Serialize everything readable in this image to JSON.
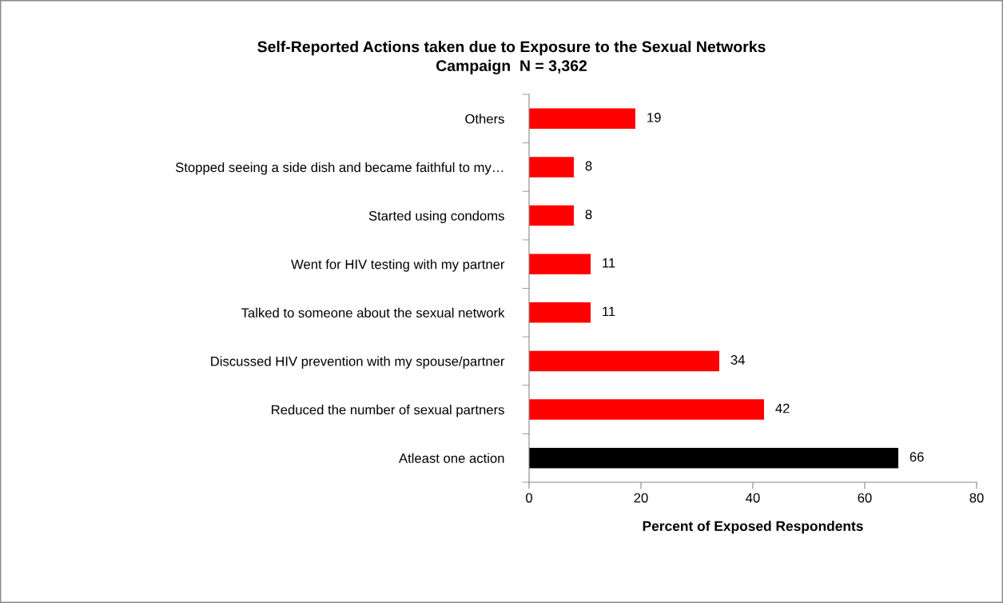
{
  "chart_data": {
    "type": "bar",
    "orientation": "horizontal",
    "title": "Self-Reported Actions taken due to Exposure to the Sexual Networks\nCampaign  N = 3,362",
    "xlabel": "Percent of Exposed Respondents",
    "categories": [
      "Others",
      "Stopped seeing a side dish and became faithful to my…",
      "Started using condoms",
      "Went for HIV testing with my partner",
      "Talked to someone about the sexual network",
      "Discussed HIV prevention with my spouse/partner",
      "Reduced the number of sexual partners",
      "Atleast one action"
    ],
    "values": [
      19,
      8,
      8,
      11,
      11,
      34,
      42,
      66
    ],
    "colors": [
      "#ff0000",
      "#ff0000",
      "#ff0000",
      "#ff0000",
      "#ff0000",
      "#ff0000",
      "#ff0000",
      "#000000"
    ],
    "xlim": [
      0,
      80
    ],
    "xticks": [
      0,
      20,
      40,
      60,
      80
    ],
    "grid": false,
    "legend": false,
    "data_labels": true
  }
}
